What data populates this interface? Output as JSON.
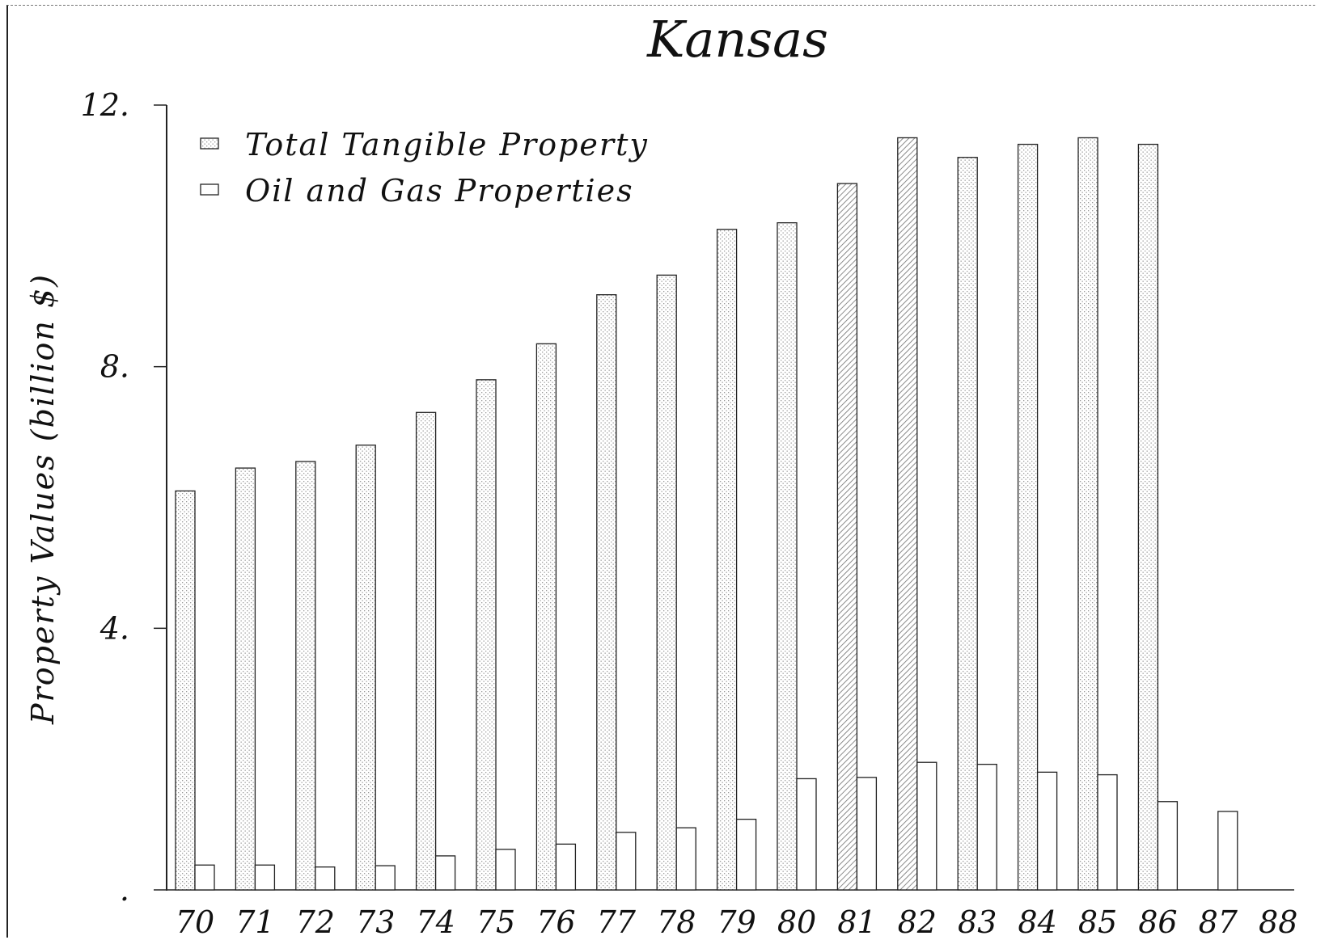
{
  "chart_data": {
    "type": "bar",
    "title": "Kansas",
    "ylabel": "Property Values (billion $)",
    "xlabel": "",
    "ylim": [
      0,
      12
    ],
    "yticks": [
      {
        "value": 0,
        "label": "."
      },
      {
        "value": 4,
        "label": "4."
      },
      {
        "value": 8,
        "label": "8."
      },
      {
        "value": 12,
        "label": "12."
      }
    ],
    "categories": [
      "70",
      "71",
      "72",
      "73",
      "74",
      "75",
      "76",
      "77",
      "78",
      "79",
      "80",
      "81",
      "82",
      "83",
      "84",
      "85",
      "86",
      "87",
      "88"
    ],
    "series": [
      {
        "name": "Total Tangible Property",
        "pattern": "stipple",
        "values": [
          6.1,
          6.45,
          6.55,
          6.8,
          7.3,
          7.8,
          8.35,
          9.1,
          9.4,
          10.1,
          10.2,
          10.8,
          11.5,
          11.2,
          11.4,
          11.5,
          11.4,
          null,
          null
        ]
      },
      {
        "name": "Oil and Gas Properties",
        "pattern": "open",
        "values": [
          0.38,
          0.38,
          0.35,
          0.37,
          0.52,
          0.62,
          0.7,
          0.88,
          0.95,
          1.08,
          1.7,
          1.72,
          1.95,
          1.92,
          1.8,
          1.76,
          1.35,
          1.2,
          null
        ]
      }
    ],
    "legend_position": "top-left",
    "grid": false
  },
  "colors": {
    "ink": "#222222",
    "stipple": "#9a9a9a",
    "hatch": "#6f6f6f"
  }
}
